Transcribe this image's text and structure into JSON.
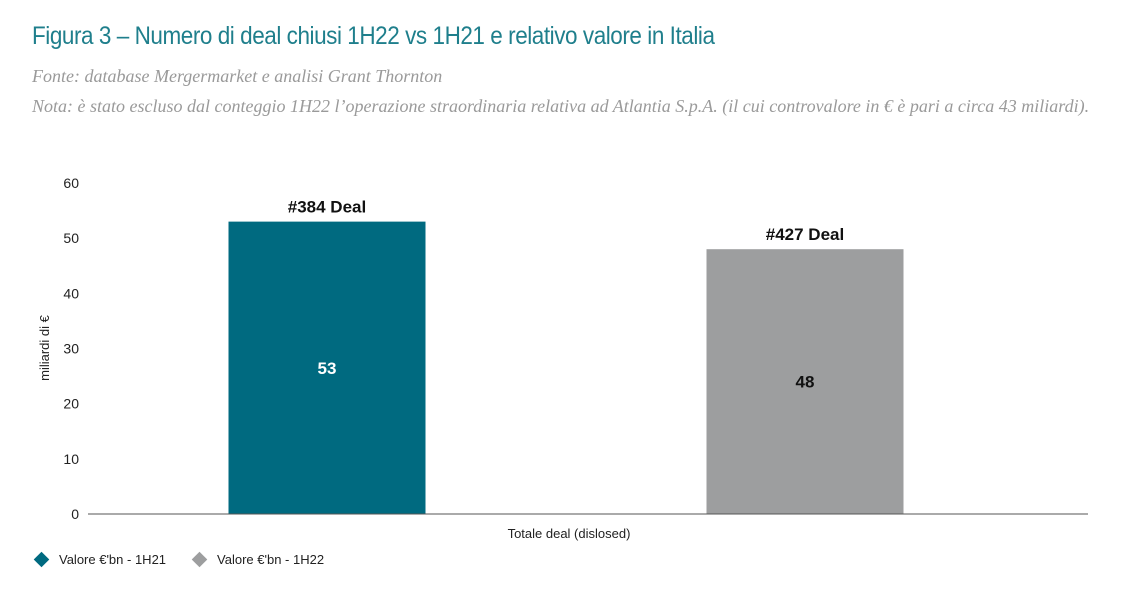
{
  "title": "Figura 3 – Numero di deal chiusi 1H22 vs 1H21 e relativo valore in Italia",
  "source": "Fonte: database Mergermarket e analisi Grant Thornton",
  "note": "Nota: è stato escluso dal conteggio 1H22 l’operazione straordinaria relativa ad Atlantia S.p.A. (il cui controvalore in € è pari a circa 43 miliardi).",
  "chart_data": {
    "type": "bar",
    "categories": [
      "Totale deal (dislosed)"
    ],
    "series": [
      {
        "name": "Valore €'bn - 1H21",
        "values": [
          53
        ],
        "top_label": "#384 Deal",
        "color": "#006a80",
        "label_color": "#ffffff"
      },
      {
        "name": "Valore €'bn - 1H22",
        "values": [
          48
        ],
        "top_label": "#427 Deal",
        "color": "#9d9e9f",
        "label_color": "#111111"
      }
    ],
    "ylabel": "miliardi di €",
    "ylim": [
      0,
      60
    ],
    "yticks": [
      0,
      10,
      20,
      30,
      40,
      50,
      60
    ],
    "grid": false,
    "legend_position": "bottom-left"
  }
}
